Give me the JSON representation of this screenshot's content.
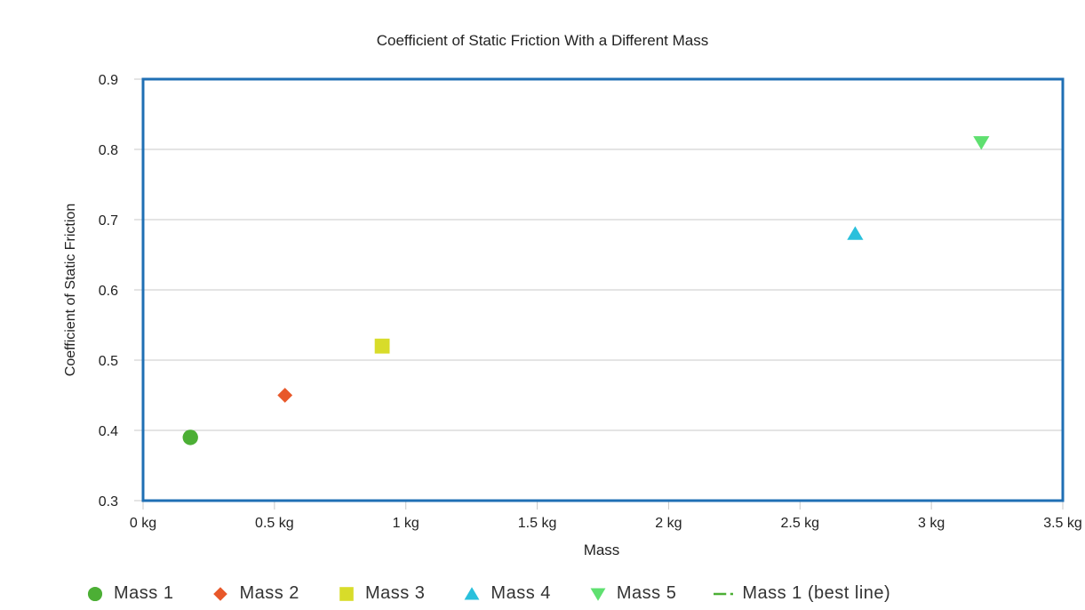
{
  "chart_data": {
    "type": "scatter",
    "title": "Coefficient of Static Friction With a Different Mass",
    "xlabel": "Mass",
    "ylabel": "Coefficient of Static Friction",
    "xlim": [
      0,
      3.5
    ],
    "ylim": [
      0.3,
      0.9
    ],
    "xticks": [
      0,
      0.5,
      1,
      1.5,
      2,
      2.5,
      3,
      3.5
    ],
    "xtick_labels": [
      "0 kg",
      "0.5 kg",
      "1 kg",
      "1.5 kg",
      "2 kg",
      "2.5 kg",
      "3 kg",
      "3.5 kg"
    ],
    "yticks": [
      0.3,
      0.4,
      0.5,
      0.6,
      0.7,
      0.8,
      0.9
    ],
    "ytick_labels": [
      "0.3",
      "0.4",
      "0.5",
      "0.6",
      "0.7",
      "0.8",
      "0.9"
    ],
    "grid": "horizontal",
    "legend_position": "bottom",
    "series": [
      {
        "name": "Mass 1",
        "marker": "circle",
        "color": "#4caf35",
        "points": [
          {
            "x": 0.18,
            "y": 0.39
          }
        ]
      },
      {
        "name": "Mass 2",
        "marker": "diamond",
        "color": "#e8582a",
        "points": [
          {
            "x": 0.54,
            "y": 0.45
          }
        ]
      },
      {
        "name": "Mass 3",
        "marker": "square",
        "color": "#d8dc2a",
        "points": [
          {
            "x": 0.91,
            "y": 0.52
          }
        ]
      },
      {
        "name": "Mass 4",
        "marker": "triangle-up",
        "color": "#29c0dc",
        "points": [
          {
            "x": 2.71,
            "y": 0.68
          }
        ]
      },
      {
        "name": "Mass 5",
        "marker": "triangle-down",
        "color": "#5fe070",
        "points": [
          {
            "x": 3.19,
            "y": 0.81
          }
        ]
      },
      {
        "name": "Mass 1 (best line)",
        "marker": "dash-dot",
        "color": "#4caf35",
        "points": []
      }
    ]
  }
}
